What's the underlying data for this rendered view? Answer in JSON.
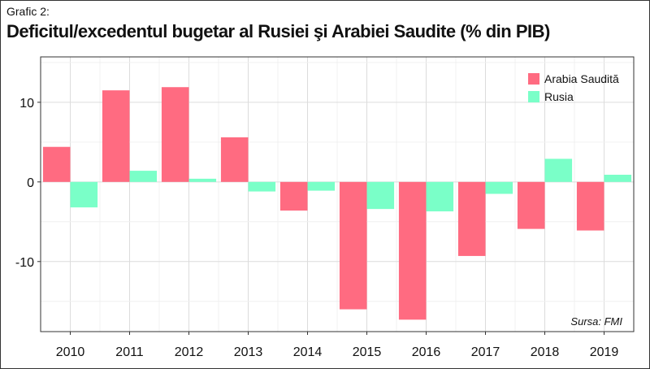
{
  "header": {
    "label": "Grafic 2:",
    "title": "Deficitul/excedentul bugetar al Rusiei şi Arabiei Saudite (% din PIB)"
  },
  "source": "Sursa: FMI",
  "colors": {
    "saudi": "#ff6b81",
    "russia": "#7affc8"
  },
  "chart_data": {
    "type": "bar",
    "categories": [
      "2010",
      "2011",
      "2012",
      "2013",
      "2014",
      "2015",
      "2016",
      "2017",
      "2018",
      "2019"
    ],
    "series": [
      {
        "name": "Arabia Saudită",
        "values": [
          4.4,
          11.5,
          11.9,
          5.6,
          -3.6,
          -16.0,
          -17.3,
          -9.3,
          -5.9,
          -6.1
        ]
      },
      {
        "name": "Rusia",
        "values": [
          -3.2,
          1.4,
          0.4,
          -1.2,
          -1.1,
          -3.4,
          -3.7,
          -1.5,
          2.9,
          0.9
        ]
      }
    ],
    "ylim": [
      -18.8,
      15.7
    ],
    "yticks": [
      -10,
      0,
      10
    ],
    "ytick_labels": [
      "-10",
      "0",
      "10"
    ],
    "grid": true,
    "legend_position": "top-right"
  }
}
